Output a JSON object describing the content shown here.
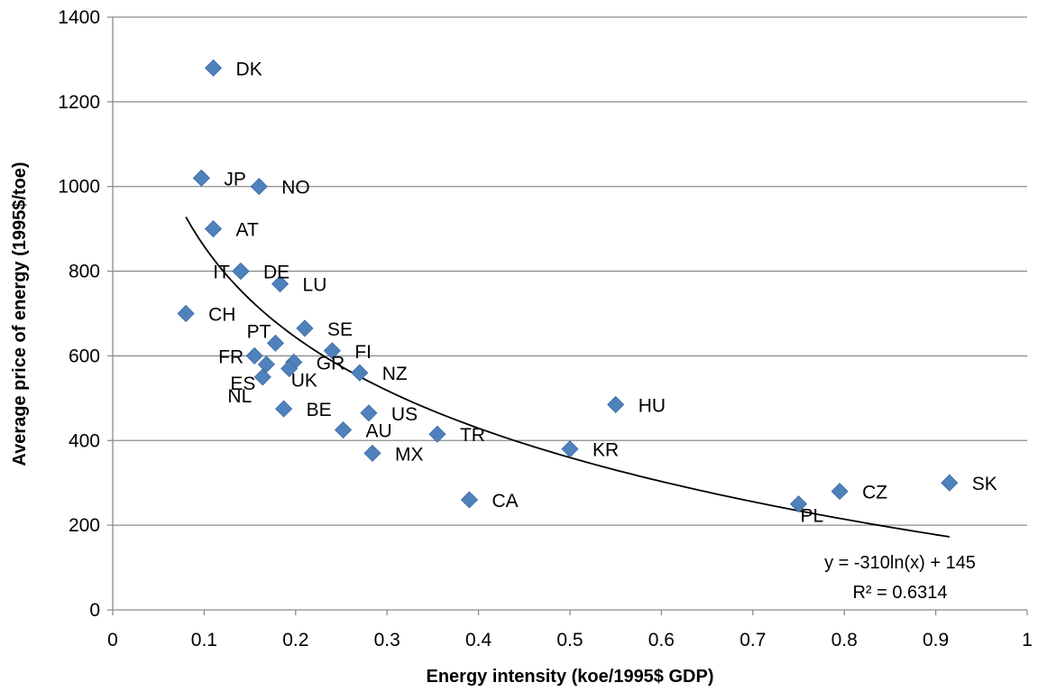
{
  "chart_data": {
    "type": "scatter",
    "xlabel": "Energy intensity (koe/1995$ GDP)",
    "ylabel": "Average price of energy (1995$/toe)",
    "xlim": [
      0,
      1
    ],
    "ylim": [
      0,
      1400
    ],
    "xticks": [
      0,
      0.1,
      0.2,
      0.3,
      0.4,
      0.5,
      0.6,
      0.7,
      0.8,
      0.9,
      1
    ],
    "xtick_labels": [
      "0",
      "0.1",
      "0.2",
      "0.3",
      "0.4",
      "0.5",
      "0.6",
      "0.7",
      "0.8",
      "0.9",
      "1"
    ],
    "yticks": [
      0,
      200,
      400,
      600,
      800,
      1000,
      1200,
      1400
    ],
    "ytick_labels": [
      "0",
      "200",
      "400",
      "600",
      "800",
      "1000",
      "1200",
      "1400"
    ],
    "grid": "horizontal",
    "marker_color": "#4f81bd",
    "points": [
      {
        "label": "DK",
        "x": 0.11,
        "y": 1280,
        "label_pos": "right"
      },
      {
        "label": "JP",
        "x": 0.097,
        "y": 1020,
        "label_pos": "right"
      },
      {
        "label": "NO",
        "x": 0.16,
        "y": 1000,
        "label_pos": "right"
      },
      {
        "label": "AT",
        "x": 0.11,
        "y": 900,
        "label_pos": "right"
      },
      {
        "label": "IT",
        "x": 0.14,
        "y": 800,
        "label_pos": "left"
      },
      {
        "label": "DE",
        "x": 0.14,
        "y": 800,
        "label_pos": "right"
      },
      {
        "label": "LU",
        "x": 0.183,
        "y": 770,
        "label_pos": "right"
      },
      {
        "label": "CH",
        "x": 0.08,
        "y": 700,
        "label_pos": "right"
      },
      {
        "label": "SE",
        "x": 0.21,
        "y": 665,
        "label_pos": "right"
      },
      {
        "label": "PT",
        "x": 0.178,
        "y": 630,
        "label_pos": "above-left"
      },
      {
        "label": "FI",
        "x": 0.24,
        "y": 612,
        "label_pos": "right"
      },
      {
        "label": "FR",
        "x": 0.155,
        "y": 600,
        "label_pos": "left"
      },
      {
        "label": "GR",
        "x": 0.198,
        "y": 585,
        "label_pos": "right"
      },
      {
        "label": "ES",
        "x": 0.168,
        "y": 580,
        "label_pos": "below-left"
      },
      {
        "label": "UK",
        "x": 0.193,
        "y": 570,
        "label_pos": "below-right"
      },
      {
        "label": "NZ",
        "x": 0.27,
        "y": 560,
        "label_pos": "right"
      },
      {
        "label": "NL",
        "x": 0.164,
        "y": 550,
        "label_pos": "below-left"
      },
      {
        "label": "HU",
        "x": 0.55,
        "y": 485,
        "label_pos": "right"
      },
      {
        "label": "BE",
        "x": 0.187,
        "y": 475,
        "label_pos": "right"
      },
      {
        "label": "US",
        "x": 0.28,
        "y": 465,
        "label_pos": "right"
      },
      {
        "label": "AU",
        "x": 0.252,
        "y": 425,
        "label_pos": "right"
      },
      {
        "label": "TR",
        "x": 0.355,
        "y": 415,
        "label_pos": "right"
      },
      {
        "label": "KR",
        "x": 0.5,
        "y": 380,
        "label_pos": "right"
      },
      {
        "label": "MX",
        "x": 0.284,
        "y": 370,
        "label_pos": "right"
      },
      {
        "label": "CA",
        "x": 0.39,
        "y": 260,
        "label_pos": "right"
      },
      {
        "label": "PL",
        "x": 0.75,
        "y": 250,
        "label_pos": "below-right"
      },
      {
        "label": "CZ",
        "x": 0.795,
        "y": 280,
        "label_pos": "right"
      },
      {
        "label": "SK",
        "x": 0.915,
        "y": 300,
        "label_pos": "right"
      }
    ],
    "trendline": {
      "type": "logarithmic",
      "a": -310,
      "b": 145,
      "x_range": [
        0.08,
        0.915
      ],
      "equation_text": "y = -310ln(x) + 145",
      "r2_text": "R² = 0.6314"
    }
  }
}
